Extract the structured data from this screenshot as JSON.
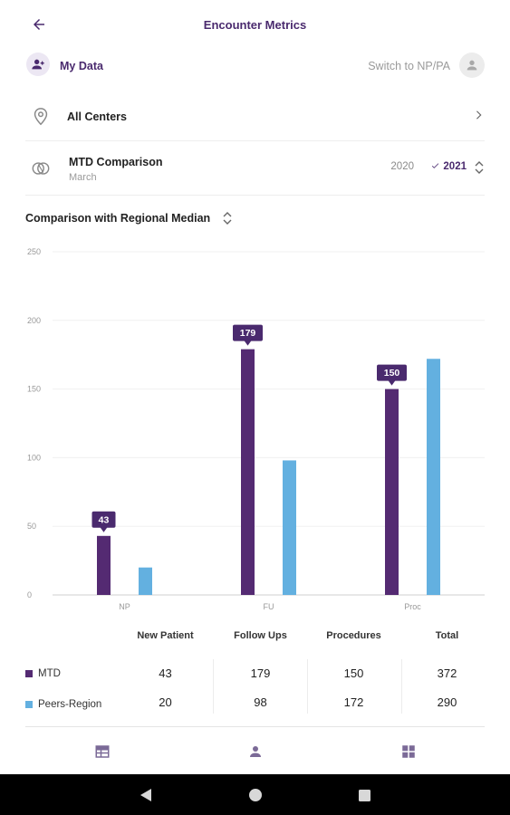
{
  "header": {
    "title": "Encounter Metrics"
  },
  "user_row": {
    "label": "My Data",
    "switch_label": "Switch to NP/PA"
  },
  "centers": {
    "label": "All Centers"
  },
  "comparison": {
    "title": "MTD Comparison",
    "subtitle": "March",
    "years": [
      {
        "label": "2020",
        "selected": false
      },
      {
        "label": "2021",
        "selected": true
      }
    ]
  },
  "chart_section": {
    "title": "Comparison with Regional Median"
  },
  "chart_data": {
    "type": "bar",
    "title": "Comparison with Regional Median",
    "categories": [
      "NP",
      "FU",
      "Proc"
    ],
    "series": [
      {
        "name": "MTD",
        "values": [
          43,
          179,
          150
        ],
        "color": "#542a72"
      },
      {
        "name": "Peers-Region",
        "values": [
          20,
          98,
          172
        ],
        "color": "#63b0e0"
      }
    ],
    "ylim": [
      0,
      250
    ],
    "yticks": [
      "0",
      "50",
      "100",
      "150",
      "200",
      "250"
    ],
    "callouts": [
      "43",
      "179",
      "150"
    ],
    "grid": true,
    "xlabel": "",
    "ylabel": ""
  },
  "table": {
    "headers": [
      "New Patient",
      "Follow Ups",
      "Procedures",
      "Total"
    ],
    "rows": [
      {
        "name": "MTD",
        "color": "#542a72",
        "values": [
          "43",
          "179",
          "150",
          "372"
        ]
      },
      {
        "name": "Peers-Region",
        "color": "#63b0e0",
        "values": [
          "20",
          "98",
          "172",
          "290"
        ]
      }
    ]
  },
  "icons": {
    "back": "arrow-left-icon",
    "user_badge": "person-add-icon",
    "avatar": "person-icon",
    "location": "location-pin-icon",
    "chevron": "chevron-right-icon",
    "compare": "compare-circles-icon",
    "sort": "unfold-icon",
    "nav_table": "table-icon",
    "nav_profile": "person-icon",
    "nav_dashboard": "grid-icon"
  },
  "colors": {
    "accent": "#4a2a6e",
    "mtd": "#542a72",
    "peers": "#63b0e0"
  }
}
